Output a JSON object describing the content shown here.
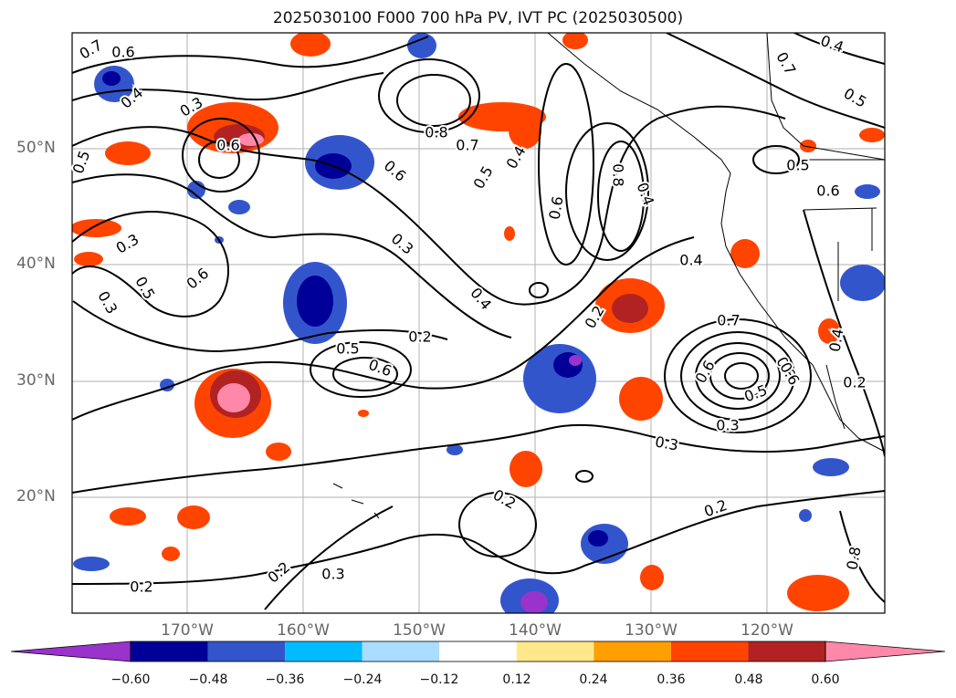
{
  "title": "2025030100 F000 700 hPa PV, IVT PC (2025030500)",
  "lat_labels": [
    "50°N",
    "40°N",
    "30°N",
    "20°N"
  ],
  "lon_labels": [
    "170°W",
    "160°W",
    "150°W",
    "140°W",
    "130°W",
    "120°W"
  ],
  "colorbar": {
    "ticks": [
      "−0.60",
      "−0.48",
      "−0.36",
      "−0.24",
      "−0.12",
      "0.12",
      "0.24",
      "0.36",
      "0.48",
      "0.60"
    ],
    "colors": [
      "#9933cc",
      "#000099",
      "#3355cc",
      "#00bbff",
      "#aaddff",
      "#ffffff",
      "#ffe88a",
      "#ffa000",
      "#ff4400",
      "#b22222",
      "#ff88aa"
    ]
  },
  "contour_labels": [
    "0.7",
    "0.6",
    "0.4",
    "0.3",
    "0.6",
    "0.5",
    "0.8",
    "0.7",
    "0.5",
    "0.4",
    "0.6",
    "0.6",
    "0.8",
    "0.4",
    "0.3",
    "0.3",
    "0.5",
    "0.6",
    "0.4",
    "0.2",
    "0.5",
    "0.6",
    "0.3",
    "0.2",
    "0.4",
    "0.7",
    "0.6",
    "0.8",
    "0.5",
    "0.3",
    "0.3",
    "0.2",
    "0.2",
    "0.3",
    "0.2",
    "0.2",
    "0.8",
    "0.5",
    "0.6",
    "0.7",
    "0.5",
    "0.2",
    "0.4",
    "0.6",
    "0.4"
  ]
}
